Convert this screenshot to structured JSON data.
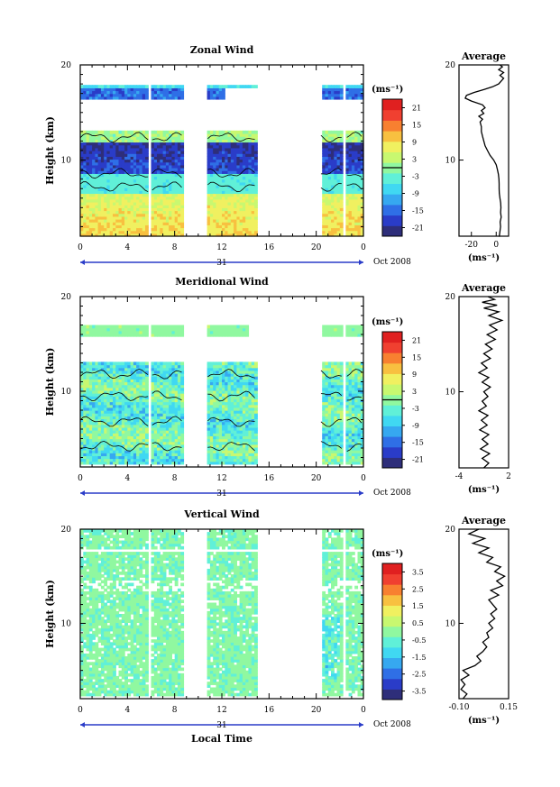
{
  "chart_data": [
    {
      "type": "heatmap",
      "title": "Zonal Wind",
      "ylabel": "Height (km)",
      "xlabel": "",
      "x_ticks": [
        "0",
        "4",
        "8",
        "12",
        "16",
        "20",
        "0"
      ],
      "y_ticks": [
        "10",
        "20"
      ],
      "xlim": [
        0,
        24
      ],
      "ylim": [
        2,
        20
      ],
      "day_label": "31",
      "month_label": "Oct 2008",
      "colorbar": {
        "unit": "(ms⁻¹)",
        "ticks": [
          "21",
          "15",
          "9",
          "3",
          "-3",
          "-9",
          "-15",
          "-21"
        ],
        "range": [
          -24,
          24
        ]
      },
      "profile": {
        "title": "Average",
        "x_ticks": [
          "-20",
          "0"
        ],
        "xlim": [
          -30,
          10
        ],
        "unit": "(ms⁻¹)",
        "y_ticks": [
          "10",
          "20"
        ],
        "points": [
          [
            3,
            2
          ],
          [
            2.5,
            2
          ],
          [
            3,
            2.5
          ],
          [
            3.5,
            3
          ],
          [
            3.2,
            3.5
          ],
          [
            4,
            4
          ],
          [
            3.5,
            4.5
          ],
          [
            3.8,
            5
          ],
          [
            3.6,
            5.5
          ],
          [
            3,
            6
          ],
          [
            2.5,
            6.5
          ],
          [
            2.4,
            7
          ],
          [
            2.4,
            7.5
          ],
          [
            2.2,
            8
          ],
          [
            1.8,
            8.5
          ],
          [
            1,
            9
          ],
          [
            0,
            9.5
          ],
          [
            -2,
            10
          ],
          [
            -5,
            10.5
          ],
          [
            -7,
            11
          ],
          [
            -9,
            11.5
          ],
          [
            -10,
            12
          ],
          [
            -11,
            12.5
          ],
          [
            -12,
            13
          ],
          [
            -12,
            13.5
          ],
          [
            -13,
            14
          ],
          [
            -11,
            14.3
          ],
          [
            -14,
            14.6
          ],
          [
            -10,
            14.9
          ],
          [
            -12,
            15.2
          ],
          [
            -9,
            15.5
          ],
          [
            -11,
            15.8
          ],
          [
            -20,
            16.2
          ],
          [
            -25,
            16.5
          ],
          [
            -24,
            16.8
          ],
          [
            -18,
            17.1
          ],
          [
            -10,
            17.4
          ],
          [
            -3,
            17.7
          ],
          [
            2,
            18
          ],
          [
            4,
            18.3
          ],
          [
            6,
            18.6
          ],
          [
            3,
            18.9
          ],
          [
            6,
            19.2
          ],
          [
            2,
            19.5
          ],
          [
            5,
            19.8
          ],
          [
            3,
            20
          ]
        ]
      },
      "contour_levels": [
        -9,
        3
      ]
    },
    {
      "type": "heatmap",
      "title": "Meridional Wind",
      "ylabel": "Height (km)",
      "xlabel": "",
      "x_ticks": [
        "0",
        "4",
        "8",
        "12",
        "16",
        "20",
        "0"
      ],
      "y_ticks": [
        "10",
        "20"
      ],
      "xlim": [
        0,
        24
      ],
      "ylim": [
        2,
        20
      ],
      "day_label": "31",
      "month_label": "Oct 2008",
      "colorbar": {
        "unit": "(ms⁻¹)",
        "ticks": [
          "21",
          "15",
          "9",
          "3",
          "-3",
          "-9",
          "-15",
          "-21"
        ],
        "range": [
          -24,
          24
        ]
      },
      "profile": {
        "title": "Average",
        "x_ticks": [
          "-4",
          "2"
        ],
        "xlim": [
          -4,
          2
        ],
        "unit": "(ms⁻¹)",
        "y_ticks": [
          "10",
          "20"
        ],
        "points": [
          [
            -1,
            2
          ],
          [
            -0.4,
            2.5
          ],
          [
            -1.2,
            3
          ],
          [
            -0.3,
            3.5
          ],
          [
            -1.4,
            4
          ],
          [
            -0.5,
            4.5
          ],
          [
            -1.2,
            5
          ],
          [
            -0.4,
            5.5
          ],
          [
            -1.5,
            6
          ],
          [
            -0.6,
            6.5
          ],
          [
            -1.3,
            7
          ],
          [
            -0.5,
            7.5
          ],
          [
            -1.6,
            8
          ],
          [
            -0.7,
            8.5
          ],
          [
            -1.2,
            9
          ],
          [
            -0.5,
            9.5
          ],
          [
            -1,
            10
          ],
          [
            -0.2,
            10.5
          ],
          [
            -1.2,
            11
          ],
          [
            -0.4,
            11.5
          ],
          [
            -1.6,
            12
          ],
          [
            -0.6,
            12.5
          ],
          [
            -1.3,
            13
          ],
          [
            -0.2,
            13.5
          ],
          [
            -1,
            14
          ],
          [
            0,
            14.5
          ],
          [
            -0.8,
            15
          ],
          [
            0.4,
            15.5
          ],
          [
            -0.6,
            16
          ],
          [
            0.6,
            16.5
          ],
          [
            -0.3,
            17
          ],
          [
            1.2,
            17.5
          ],
          [
            -0.4,
            18
          ],
          [
            0.8,
            18.4
          ],
          [
            -1,
            18.8
          ],
          [
            0.6,
            19.1
          ],
          [
            -1.2,
            19.4
          ],
          [
            0.3,
            19.7
          ],
          [
            -0.5,
            20
          ]
        ]
      },
      "contour_levels": [
        -3,
        3
      ]
    },
    {
      "type": "heatmap",
      "title": "Vertical Wind",
      "ylabel": "Height (km)",
      "xlabel": "Local Time",
      "x_ticks": [
        "0",
        "4",
        "8",
        "12",
        "16",
        "20",
        "0"
      ],
      "y_ticks": [
        "10",
        "20"
      ],
      "xlim": [
        0,
        24
      ],
      "ylim": [
        2,
        20
      ],
      "day_label": "31",
      "month_label": "Oct 2008",
      "colorbar": {
        "unit": "(ms⁻¹)",
        "ticks": [
          "3.5",
          "2.5",
          "1.5",
          "0.5",
          "-0.5",
          "-1.5",
          "-2.5",
          "-3.5"
        ],
        "range": [
          -4,
          4
        ]
      },
      "profile": {
        "title": "Average",
        "x_ticks": [
          "-0.10",
          "0.15"
        ],
        "xlim": [
          -0.1,
          0.15
        ],
        "unit": "(ms⁻¹)",
        "y_ticks": [
          "10",
          "20"
        ],
        "points": [
          [
            -0.08,
            2
          ],
          [
            -0.06,
            2.5
          ],
          [
            -0.09,
            3
          ],
          [
            -0.07,
            3.5
          ],
          [
            -0.09,
            4
          ],
          [
            -0.05,
            4.5
          ],
          [
            -0.08,
            5
          ],
          [
            -0.02,
            5.5
          ],
          [
            0.01,
            6
          ],
          [
            -0.01,
            6.5
          ],
          [
            0.02,
            7
          ],
          [
            0.04,
            7.5
          ],
          [
            0.02,
            8
          ],
          [
            0.05,
            8.5
          ],
          [
            0.04,
            9
          ],
          [
            0.07,
            9.5
          ],
          [
            0.05,
            10
          ],
          [
            0.08,
            10.5
          ],
          [
            0.06,
            11
          ],
          [
            0.09,
            11.5
          ],
          [
            0.07,
            12
          ],
          [
            0.05,
            12.5
          ],
          [
            0.1,
            13
          ],
          [
            0.06,
            13.5
          ],
          [
            0.12,
            14
          ],
          [
            0.09,
            14.5
          ],
          [
            0.13,
            15
          ],
          [
            0.08,
            15.5
          ],
          [
            0.11,
            16
          ],
          [
            0.04,
            16.5
          ],
          [
            0.07,
            17
          ],
          [
            0.0,
            17.5
          ],
          [
            0.05,
            18
          ],
          [
            -0.03,
            18.5
          ],
          [
            0.03,
            19
          ],
          [
            -0.05,
            19.5
          ],
          [
            0.0,
            20
          ]
        ]
      }
    }
  ],
  "data_gaps_hours": [
    [
      5.8,
      6.1
    ],
    [
      8.8,
      10.8
    ],
    [
      15.0,
      20.4
    ],
    [
      22.2,
      22.6
    ]
  ],
  "colormap": [
    "#2e2e7a",
    "#2a3cc8",
    "#2f6fe6",
    "#36a8f0",
    "#40d8f2",
    "#60f0d8",
    "#90f8a0",
    "#c8f870",
    "#f0f060",
    "#f8c040",
    "#f88030",
    "#f04030",
    "#e02020"
  ]
}
